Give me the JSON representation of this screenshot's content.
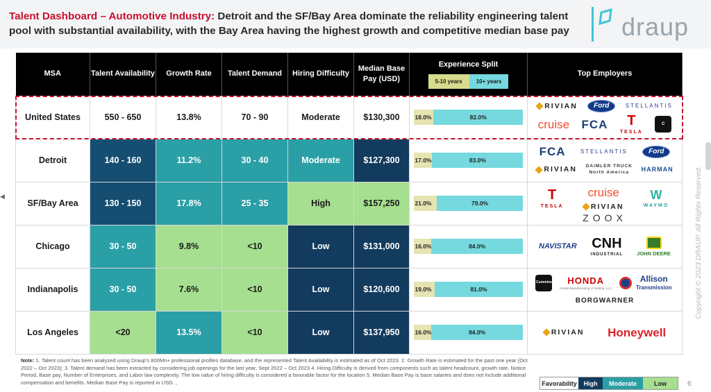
{
  "header": {
    "title_accent": "Talent Dashboard – Automotive Industry:",
    "title_rest": " Detroit and the SF/Bay Area dominate the reliability engineering talent pool with substantial availability, with the Bay Area having the highest growth and competitive median base pay",
    "logo_text": "draup"
  },
  "table": {
    "headers": {
      "msa": "MSA",
      "talent": "Talent Availability",
      "growth": "Growth Rate",
      "demand": "Talent Demand",
      "hiring": "Hiring Difficulty",
      "pay": "Median Base Pay (USD)",
      "split": "Experience Split",
      "split_5": "5-10 years",
      "split_10": "10+ years",
      "employers": "Top Employers"
    },
    "rows": [
      {
        "msa": "United States",
        "talent": "550 - 650",
        "growth": "13.8%",
        "demand": "70 - 90",
        "hiring": "Moderate",
        "pay": "$130,300",
        "s5": "18.0%",
        "s10": "82.0%",
        "employers": {
          "a": "RIVIAN",
          "b": "Ford",
          "c": "STELLANTIS",
          "d": "cruise",
          "e": "FCA",
          "f": "T",
          "g": "TESLA",
          "h": "C"
        }
      },
      {
        "msa": "Detroit",
        "talent": "140 - 160",
        "growth": "11.2%",
        "demand": "30 - 40",
        "hiring": "Moderate",
        "pay": "$127,300",
        "s5": "17.0%",
        "s10": "83.0%",
        "employers": {
          "a": "FCA",
          "b": "STELLANTIS",
          "c": "Ford",
          "d": "RIVIAN",
          "e": "DAIMLER TRUCK",
          "f": "North America",
          "g": "HARMAN"
        }
      },
      {
        "msa": "SF/Bay Area",
        "talent": "130 - 150",
        "growth": "17.8%",
        "demand": "25 - 35",
        "hiring": "High",
        "pay": "$157,250",
        "s5": "21.0%",
        "s10": "79.0%",
        "employers": {
          "a": "T",
          "b": "TESLA",
          "c": "cruise",
          "d": "RIVIAN",
          "e": "W",
          "f": "WAYMO",
          "g": "ZOOX"
        }
      },
      {
        "msa": "Chicago",
        "talent": "30 - 50",
        "growth": "9.8%",
        "demand": "<10",
        "hiring": "Low",
        "pay": "$131,000",
        "s5": "16.0%",
        "s10": "84.0%",
        "employers": {
          "a": "NAVISTAR",
          "b": "CNH",
          "c": "INDUSTRIAL",
          "d": "JOHN DEERE"
        }
      },
      {
        "msa": "Indianapolis",
        "talent": "30 - 50",
        "growth": "7.6%",
        "demand": "<10",
        "hiring": "Low",
        "pay": "$120,600",
        "s5": "19.0%",
        "s10": "81.0%",
        "employers": {
          "a": "Cummins",
          "b": "HONDA",
          "c": "Honda Manufacturing of Indiana, LLC",
          "d": "Allison",
          "e": "Transmission",
          "f": "BORGWARNER"
        }
      },
      {
        "msa": "Los Angeles",
        "talent": "<20",
        "growth": "13.5%",
        "demand": "<10",
        "hiring": "Low",
        "pay": "$137,950",
        "s5": "16.0%",
        "s10": "84.0%",
        "employers": {
          "a": "RIVIAN",
          "b": "Honeywell"
        }
      }
    ]
  },
  "note": {
    "label": "Note:",
    "text": " 1. Talent count has been analyzed using Draup’s 800Mn+ professional profiles database, and the represented Talent Availability is estimated as of Oct 2023. 2. Growth Rate is estimated for the past one year (Oct 2022 – Oct 2023); 3. Talent demand has been extracted by considering job openings for the last year, Sept 2022 – Oct 2023 4. Hiring Difficulty is derived from components such as talent headcount, growth rate, Notice Period, Base pay, Number of Enterprises, and Labor law complexity. The low value of hiring difficulty is considered a favorable factor for the location 5. Median Base Pay is base salaries and does not include additional compensation and benefits. Median Base Pay is reported in USD. ,"
  },
  "favorability": {
    "label": "Favorability",
    "high": "High",
    "moderate": "Moderate",
    "low": "Low"
  },
  "page_number": "6",
  "copyright": "Copyright © 2023 DRAUP. All Rights Reserved.",
  "colors": {
    "accent": "#c8102e",
    "high": "#123b5e",
    "moderate": "#2b9fa6",
    "low": "#a6df8f"
  }
}
